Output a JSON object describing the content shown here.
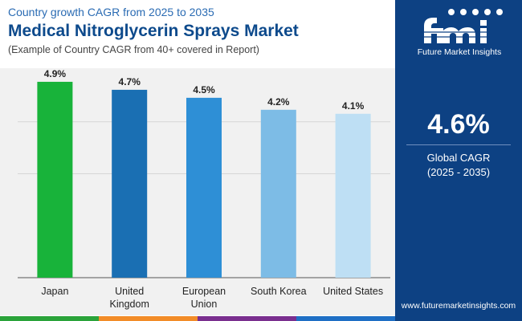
{
  "header": {
    "subtitle": "Country growth CAGR from 2025 to 2035",
    "title": "Medical Nitroglycerin Sprays Market",
    "note": "(Example of Country CAGR from 40+ covered in Report)"
  },
  "sidebar": {
    "brand_name": "Future Market Insights",
    "kpi_value": "4.6%",
    "kpi_label_line1": "Global CAGR",
    "kpi_label_line2": "(2025 - 2035)",
    "website": "www.futuremarketinsights.com"
  },
  "colors": {
    "title": "#0d4a8c",
    "sidebar_bg": "#0d4183",
    "strip": [
      "#2aa33a",
      "#f28c28",
      "#7a2f8f",
      "#1f6fc5"
    ]
  },
  "chart_data": {
    "type": "bar",
    "categories": [
      "Japan",
      "United Kingdom",
      "European Union",
      "South Korea",
      "United States"
    ],
    "category_lines": [
      [
        "Japan"
      ],
      [
        "United",
        "Kingdom"
      ],
      [
        "European",
        "Union"
      ],
      [
        "South Korea"
      ],
      [
        "United States"
      ]
    ],
    "values": [
      4.9,
      4.7,
      4.5,
      4.2,
      4.1
    ],
    "data_labels": [
      "4.9%",
      "4.7%",
      "4.5%",
      "4.2%",
      "4.1%"
    ],
    "bar_colors": [
      "#18b33a",
      "#1a6fb3",
      "#2e8fd6",
      "#7dbce6",
      "#bedff4"
    ],
    "ylim": [
      0,
      5.2
    ],
    "gridlines": [
      2.6,
      3.9
    ],
    "grid": true,
    "title": "",
    "xlabel": "",
    "ylabel": ""
  }
}
